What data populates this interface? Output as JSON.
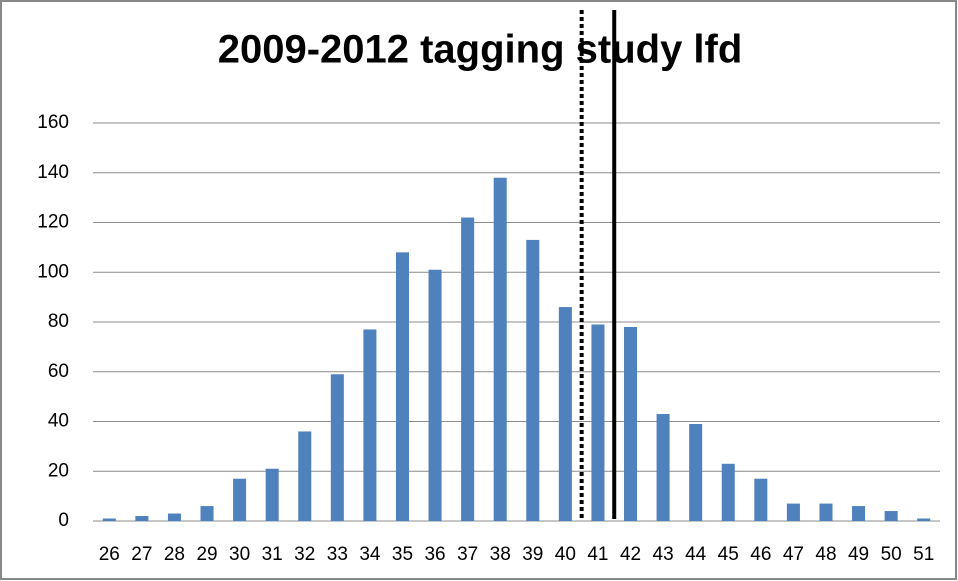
{
  "chart_data": {
    "type": "bar",
    "title": "2009-2012 tagging study lfd",
    "x": [
      26,
      27,
      28,
      29,
      30,
      31,
      32,
      33,
      34,
      35,
      36,
      37,
      38,
      39,
      40,
      41,
      42,
      43,
      44,
      45,
      46,
      47,
      48,
      49,
      50,
      51
    ],
    "values": [
      1,
      2,
      3,
      6,
      17,
      21,
      36,
      59,
      77,
      108,
      101,
      122,
      138,
      113,
      86,
      79,
      78,
      43,
      39,
      23,
      17,
      7,
      7,
      6,
      4,
      1
    ],
    "color": "#4f81bd",
    "ylim": [
      0,
      160
    ],
    "yticks": [
      0,
      20,
      40,
      60,
      80,
      100,
      120,
      140,
      160
    ],
    "grid": true,
    "reference_lines": [
      {
        "x": 40.5,
        "style": "dotted",
        "color": "#000000"
      },
      {
        "x": 41.5,
        "style": "solid",
        "color": "#000000"
      }
    ]
  }
}
